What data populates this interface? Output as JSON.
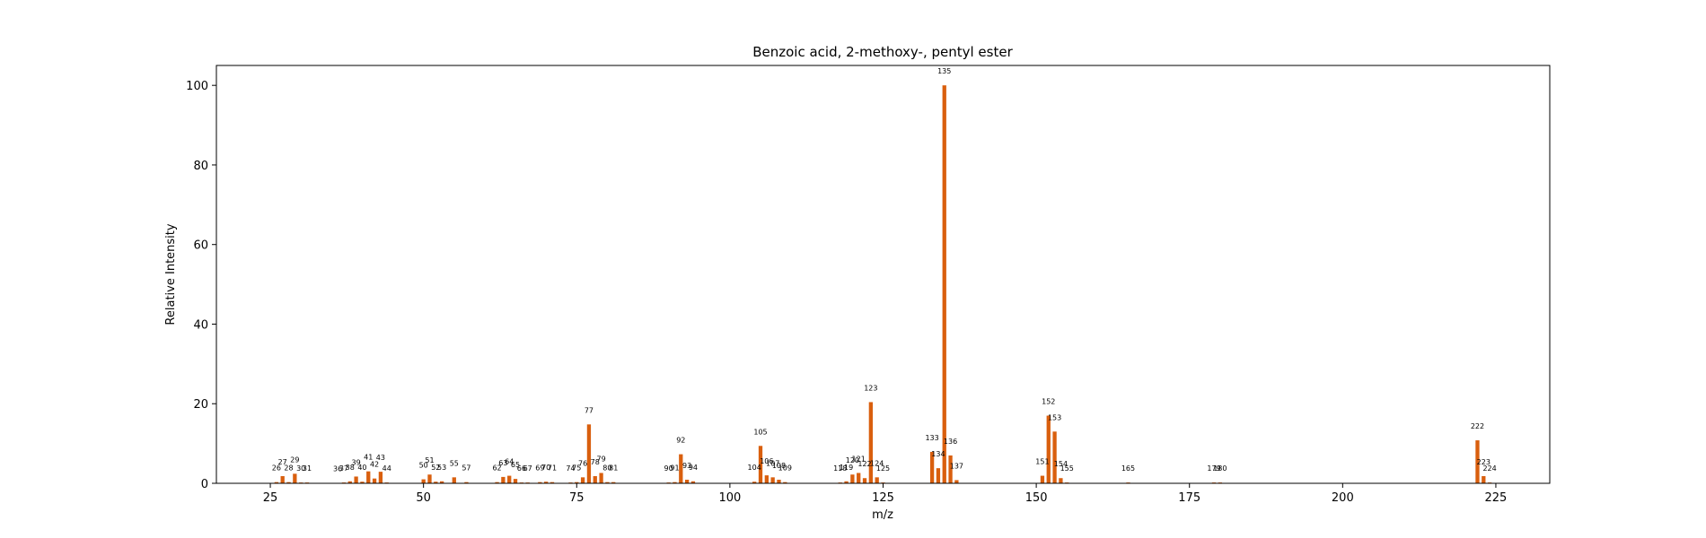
{
  "chart_data": {
    "type": "bar",
    "title": "Benzoic acid, 2-methoxy-, pentyl ester",
    "xlabel": "m/z",
    "ylabel": "Relative Intensity",
    "xlim": [
      16.2,
      233.8
    ],
    "ylim": [
      0,
      105
    ],
    "xticks": [
      25,
      50,
      75,
      100,
      125,
      150,
      175,
      200,
      225
    ],
    "yticks": [
      0,
      20,
      40,
      60,
      80,
      100
    ],
    "grid": false,
    "bar_color": "#d95f0e",
    "peaks": [
      {
        "mz": 26,
        "intensity": 0.3
      },
      {
        "mz": 27,
        "intensity": 1.8
      },
      {
        "mz": 28,
        "intensity": 0.3
      },
      {
        "mz": 29,
        "intensity": 2.4
      },
      {
        "mz": 30,
        "intensity": 0.2
      },
      {
        "mz": 31,
        "intensity": 0.2
      },
      {
        "mz": 36,
        "intensity": 0.1
      },
      {
        "mz": 37,
        "intensity": 0.2
      },
      {
        "mz": 38,
        "intensity": 0.5
      },
      {
        "mz": 39,
        "intensity": 1.7
      },
      {
        "mz": 40,
        "intensity": 0.4
      },
      {
        "mz": 41,
        "intensity": 3.0
      },
      {
        "mz": 42,
        "intensity": 1.2
      },
      {
        "mz": 43,
        "intensity": 2.9
      },
      {
        "mz": 44,
        "intensity": 0.2
      },
      {
        "mz": 50,
        "intensity": 1.0
      },
      {
        "mz": 51,
        "intensity": 2.2
      },
      {
        "mz": 52,
        "intensity": 0.4
      },
      {
        "mz": 53,
        "intensity": 0.5
      },
      {
        "mz": 55,
        "intensity": 1.5
      },
      {
        "mz": 57,
        "intensity": 0.3
      },
      {
        "mz": 62,
        "intensity": 0.3
      },
      {
        "mz": 63,
        "intensity": 1.6
      },
      {
        "mz": 64,
        "intensity": 1.9
      },
      {
        "mz": 65,
        "intensity": 1.1
      },
      {
        "mz": 66,
        "intensity": 0.2
      },
      {
        "mz": 67,
        "intensity": 0.2
      },
      {
        "mz": 69,
        "intensity": 0.3
      },
      {
        "mz": 70,
        "intensity": 0.4
      },
      {
        "mz": 71,
        "intensity": 0.3
      },
      {
        "mz": 74,
        "intensity": 0.2
      },
      {
        "mz": 75,
        "intensity": 0.3
      },
      {
        "mz": 76,
        "intensity": 1.5
      },
      {
        "mz": 77,
        "intensity": 14.8
      },
      {
        "mz": 78,
        "intensity": 1.8
      },
      {
        "mz": 79,
        "intensity": 2.6
      },
      {
        "mz": 80,
        "intensity": 0.3
      },
      {
        "mz": 81,
        "intensity": 0.3
      },
      {
        "mz": 90,
        "intensity": 0.2
      },
      {
        "mz": 91,
        "intensity": 0.3
      },
      {
        "mz": 92,
        "intensity": 7.3
      },
      {
        "mz": 93,
        "intensity": 0.9
      },
      {
        "mz": 94,
        "intensity": 0.5
      },
      {
        "mz": 104,
        "intensity": 0.4
      },
      {
        "mz": 105,
        "intensity": 9.4
      },
      {
        "mz": 106,
        "intensity": 2.0
      },
      {
        "mz": 107,
        "intensity": 1.5
      },
      {
        "mz": 108,
        "intensity": 0.9
      },
      {
        "mz": 109,
        "intensity": 0.3
      },
      {
        "mz": 118,
        "intensity": 0.2
      },
      {
        "mz": 119,
        "intensity": 0.5
      },
      {
        "mz": 120,
        "intensity": 2.2
      },
      {
        "mz": 121,
        "intensity": 2.6
      },
      {
        "mz": 122,
        "intensity": 1.3
      },
      {
        "mz": 123,
        "intensity": 20.4
      },
      {
        "mz": 124,
        "intensity": 1.5
      },
      {
        "mz": 125,
        "intensity": 0.2
      },
      {
        "mz": 133,
        "intensity": 7.9
      },
      {
        "mz": 134,
        "intensity": 3.8
      },
      {
        "mz": 135,
        "intensity": 100
      },
      {
        "mz": 136,
        "intensity": 7.0
      },
      {
        "mz": 137,
        "intensity": 0.8
      },
      {
        "mz": 151,
        "intensity": 1.9
      },
      {
        "mz": 152,
        "intensity": 17.0
      },
      {
        "mz": 153,
        "intensity": 13.0
      },
      {
        "mz": 154,
        "intensity": 1.3
      },
      {
        "mz": 155,
        "intensity": 0.2
      },
      {
        "mz": 165,
        "intensity": 0.2
      },
      {
        "mz": 179,
        "intensity": 0.2
      },
      {
        "mz": 180,
        "intensity": 0.2
      },
      {
        "mz": 222,
        "intensity": 10.8
      },
      {
        "mz": 223,
        "intensity": 1.8
      },
      {
        "mz": 224,
        "intensity": 0.2
      }
    ]
  }
}
